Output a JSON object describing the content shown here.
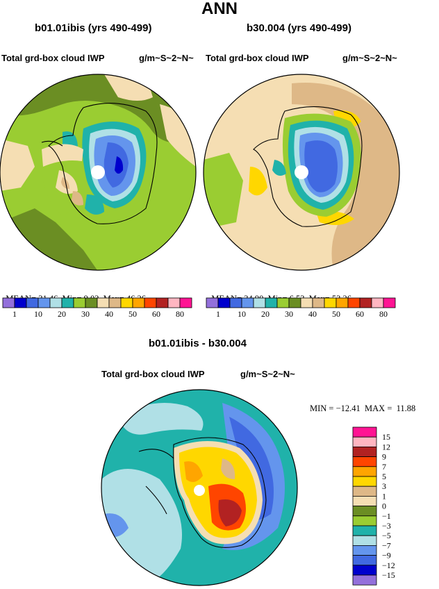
{
  "title": "ANN",
  "panels": [
    {
      "case": "b01.01ibis (yrs 490-499)",
      "variable": "Total grd-box cloud IWP",
      "units": "g/m~S~2~N~",
      "stats": {
        "mean_label": "MEAN=",
        "mean": "31.46",
        "min_label": "Min=",
        "min": "9.02",
        "max_label": "Max=",
        "max": "46.26"
      }
    },
    {
      "case": "b30.004 (yrs 490-499)",
      "variable": "Total grd-box cloud IWP",
      "units": "g/m~S~2~N~",
      "stats": {
        "mean_label": "MEAN=",
        "mean": "34.90",
        "min_label": "Min=",
        "min": "6.53",
        "max_label": "Max=",
        "max": "53.26"
      }
    }
  ],
  "abs_colorbar": {
    "colors": [
      "#9370db",
      "#0000cd",
      "#4169e1",
      "#6495ed",
      "#b0e0e6",
      "#20b2aa",
      "#9acd32",
      "#6b8e23",
      "#f5deb3",
      "#deb887",
      "#ffd700",
      "#ffa500",
      "#ff4500",
      "#b22222",
      "#ffb6c1",
      "#ff1493"
    ],
    "labels": [
      "1",
      "10",
      "20",
      "30",
      "40",
      "50",
      "60",
      "80"
    ]
  },
  "diff_panel": {
    "title": "b01.01ibis - b30.004",
    "variable": "Total grd-box cloud IWP",
    "units": "g/m~S~2~N~",
    "min_max_text": "MIN = −12.41  MAX =  11.88"
  },
  "diff_colorbar": {
    "colors": [
      "#ff1493",
      "#ffb6c1",
      "#b22222",
      "#ff4500",
      "#ffa500",
      "#ffd700",
      "#deb887",
      "#f5deb3",
      "#6b8e23",
      "#9acd32",
      "#20b2aa",
      "#b0e0e6",
      "#6495ed",
      "#4169e1",
      "#0000cd",
      "#9370db"
    ],
    "labels": [
      "15",
      "12",
      "9",
      "7",
      "5",
      "3",
      "1",
      "0",
      "−1",
      "−3",
      "−5",
      "−7",
      "−9",
      "−12",
      "−15"
    ]
  }
}
